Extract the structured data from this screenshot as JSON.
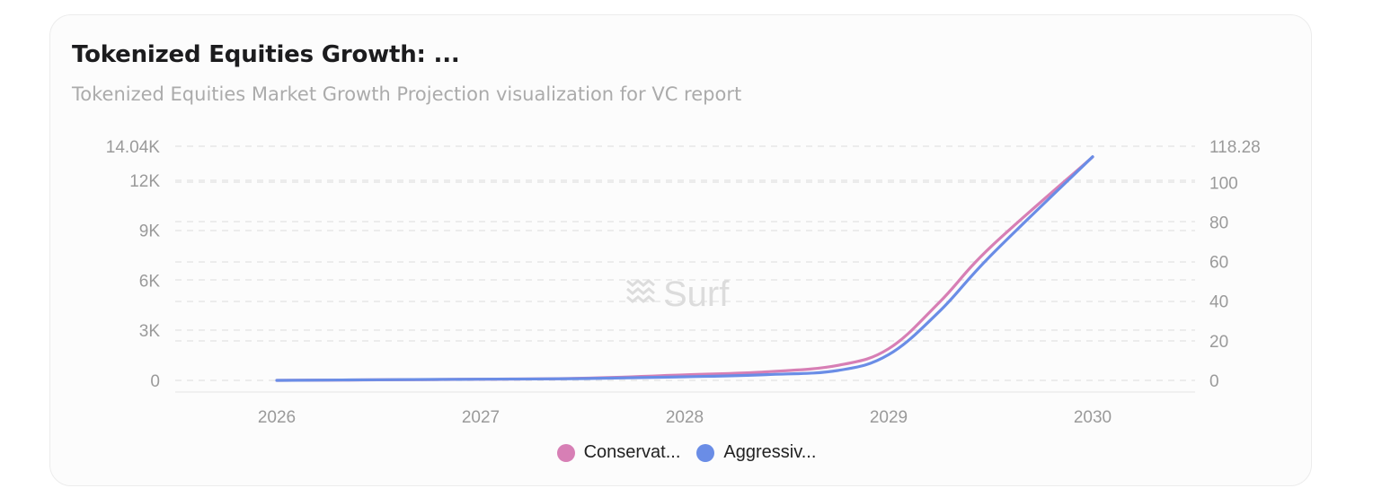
{
  "card": {
    "title": "Tokenized Equities Growth: ...",
    "subtitle": "Tokenized Equities Market Growth Projection visualization for VC report",
    "watermark": "Surf"
  },
  "chart_data": {
    "type": "line",
    "title": "Tokenized Equities Growth: ...",
    "subtitle": "Tokenized Equities Market Growth Projection visualization for VC report",
    "x": [
      "2026",
      "2027",
      "2028",
      "2029",
      "2030"
    ],
    "y_left": {
      "ticks": [
        "0",
        "3K",
        "6K",
        "9K",
        "12K",
        "14.04K"
      ],
      "tick_values": [
        0,
        3000,
        6000,
        9000,
        12000,
        14040
      ],
      "ylim": [
        0,
        14040
      ]
    },
    "y_right": {
      "ticks": [
        "0",
        "20",
        "40",
        "60",
        "80",
        "100",
        "118.28"
      ],
      "tick_values": [
        0,
        20,
        40,
        60,
        80,
        100,
        118.28
      ],
      "ylim": [
        0,
        118.28
      ]
    },
    "grid": true,
    "legend_position": "bottom-center",
    "series": [
      {
        "name": "Conservat...",
        "color": "#d77fb5",
        "axis": "left",
        "points": [
          [
            2026,
            0
          ],
          [
            2026.5,
            30
          ],
          [
            2027,
            70
          ],
          [
            2027.5,
            130
          ],
          [
            2028,
            330
          ],
          [
            2028.4,
            510
          ],
          [
            2028.75,
            900
          ],
          [
            2029,
            1900
          ],
          [
            2029.25,
            4700
          ],
          [
            2029.5,
            8000
          ],
          [
            2030,
            13400
          ]
        ]
      },
      {
        "name": "Aggressiv...",
        "color": "#6a8de6",
        "axis": "right",
        "points": [
          [
            2026,
            0
          ],
          [
            2026.5,
            0.3
          ],
          [
            2027,
            0.6
          ],
          [
            2027.5,
            0.9
          ],
          [
            2028,
            1.8
          ],
          [
            2028.4,
            2.9
          ],
          [
            2028.75,
            5
          ],
          [
            2029,
            13
          ],
          [
            2029.25,
            35
          ],
          [
            2029.5,
            63
          ],
          [
            2030,
            113
          ]
        ]
      }
    ]
  },
  "legend": {
    "items": [
      {
        "label": "Conservat...",
        "color": "#d77fb5"
      },
      {
        "label": "Aggressiv...",
        "color": "#6a8de6"
      }
    ]
  }
}
